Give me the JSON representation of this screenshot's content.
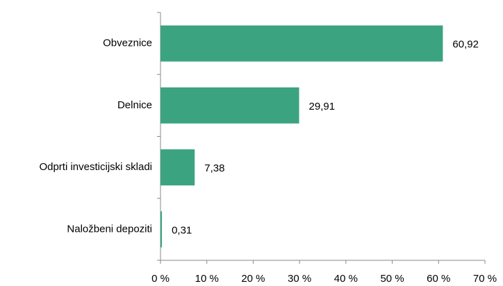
{
  "chart_data": {
    "type": "bar",
    "orientation": "horizontal",
    "categories": [
      "Obveznice",
      "Delnice",
      "Odprti investicijski skladi",
      "Naložbeni depoziti"
    ],
    "values": [
      60.92,
      29.91,
      7.38,
      0.31
    ],
    "value_labels": [
      "60,92",
      "29,91",
      "7,38",
      "0,31"
    ],
    "color": "#3ca380",
    "xlim": [
      0,
      70
    ],
    "xticks": [
      {
        "value": 0,
        "label": "0 %"
      },
      {
        "value": 10,
        "label": "10 %"
      },
      {
        "value": 20,
        "label": "20 %"
      },
      {
        "value": 30,
        "label": "30 %"
      },
      {
        "value": 40,
        "label": "40 %"
      },
      {
        "value": 50,
        "label": "50 %"
      },
      {
        "value": 60,
        "label": "60 %"
      },
      {
        "value": 70,
        "label": "70 %"
      }
    ],
    "grid": false
  }
}
